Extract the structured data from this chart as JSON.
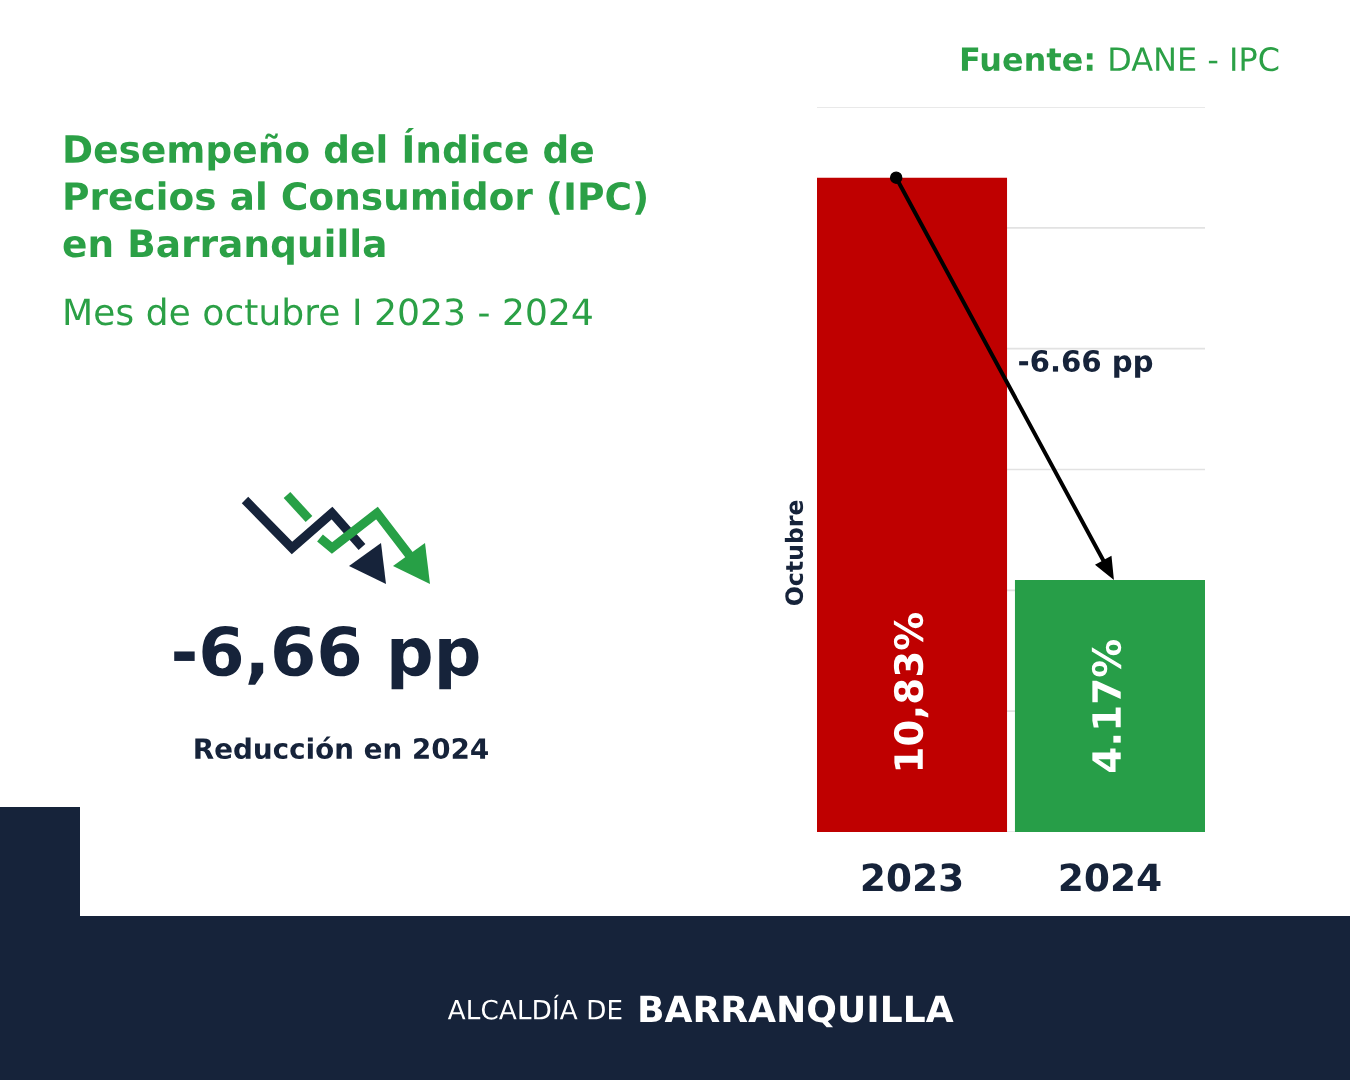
{
  "chart_data": {
    "type": "bar",
    "title": "Desempeño del Índice de Precios al Consumidor (IPC) en Barranquilla",
    "subtitle": "Mes de octubre I 2023 - 2024",
    "ylabel": "Octubre",
    "categories": [
      "2023",
      "2024"
    ],
    "values": [
      10.83,
      4.17
    ],
    "colors": [
      "#bf0000",
      "#279e48"
    ],
    "value_labels": [
      "10,83%",
      "4.17%"
    ],
    "ylim": [
      0,
      12
    ],
    "yticks": [
      {
        "value": 0,
        "label": null
      },
      {
        "value": 2,
        "label": null
      },
      {
        "value": 4,
        "label": null
      },
      {
        "value": 6,
        "label": null
      },
      {
        "value": 8,
        "label": null
      },
      {
        "value": 10,
        "label": null
      },
      {
        "value": 12,
        "label": null
      }
    ],
    "grid": "y",
    "tick_labels": "x",
    "annotations": [
      "Fuente:",
      "DANE - IPC",
      "-6.66 pp",
      "-6,66 pp",
      "Reducción en 2024",
      "ALCALDÍA DE",
      "BARRANQUILLA"
    ]
  }
}
